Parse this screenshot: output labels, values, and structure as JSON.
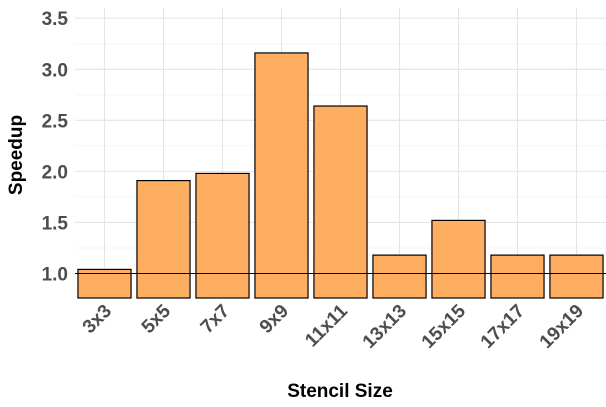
{
  "chart_data": {
    "type": "bar",
    "categories": [
      "3x3",
      "5x5",
      "7x7",
      "9x9",
      "11x11",
      "13x13",
      "15x15",
      "17x17",
      "19x19"
    ],
    "values": [
      1.04,
      1.91,
      1.98,
      3.16,
      2.64,
      1.18,
      1.52,
      1.18,
      1.18
    ],
    "xlabel": "Stencil Size",
    "ylabel": "Speedup",
    "ylim": [
      0.76,
      3.6
    ],
    "yticks": [
      1.0,
      1.5,
      2.0,
      2.5,
      3.0,
      3.5
    ],
    "ytick_labels": [
      "1.0",
      "1.5",
      "2.0",
      "2.5",
      "3.0",
      "3.5"
    ],
    "reference_line": 1.0,
    "grid": true,
    "bar_color": "#fdae61",
    "bar_edge_color": "#000000"
  }
}
